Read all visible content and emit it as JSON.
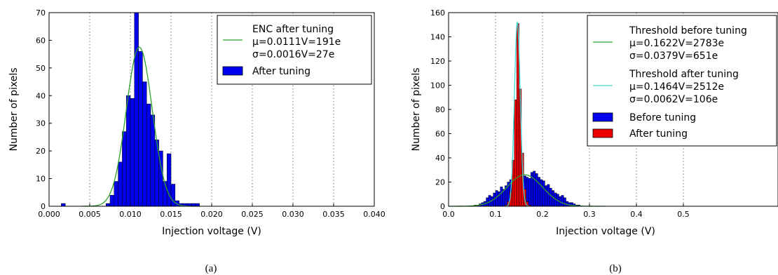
{
  "chart_data": [
    {
      "type": "bar",
      "caption": "(a)",
      "xlabel": "Injection voltage (V)",
      "ylabel": "Number of pixels",
      "xlim": [
        0.0,
        0.04
      ],
      "ylim": [
        0,
        70
      ],
      "xticks": [
        "0.000",
        "0.005",
        "0.010",
        "0.015",
        "0.020",
        "0.025",
        "0.030",
        "0.035",
        "0.040"
      ],
      "yticks": [
        "0",
        "10",
        "20",
        "30",
        "40",
        "50",
        "60",
        "70"
      ],
      "grid": "vertical dotted",
      "legend_position": "top-right",
      "bar_color": "#0000ee",
      "line_color": "#2ca02c",
      "bin_width": 0.0005,
      "series": [
        {
          "name": "After tuning",
          "bins": [
            [
              0.0015,
              1
            ],
            [
              0.007,
              1
            ],
            [
              0.0075,
              4
            ],
            [
              0.008,
              9
            ],
            [
              0.0085,
              16
            ],
            [
              0.009,
              27
            ],
            [
              0.0095,
              40
            ],
            [
              0.01,
              39
            ],
            [
              0.0105,
              70
            ],
            [
              0.011,
              56
            ],
            [
              0.0115,
              45
            ],
            [
              0.012,
              37
            ],
            [
              0.0125,
              33
            ],
            [
              0.013,
              24
            ],
            [
              0.0135,
              20
            ],
            [
              0.014,
              9
            ],
            [
              0.0145,
              19
            ],
            [
              0.015,
              8
            ],
            [
              0.0155,
              2
            ],
            [
              0.016,
              1
            ],
            [
              0.0165,
              1
            ],
            [
              0.017,
              1
            ],
            [
              0.0175,
              1
            ],
            [
              0.018,
              1
            ]
          ]
        },
        {
          "name": "ENC after tuning",
          "fit": {
            "mu": 0.0111,
            "sigma": 0.0016,
            "peak": 57.5
          }
        }
      ],
      "legend": {
        "fit_title": "ENC after tuning",
        "fit_mu": "μ=0.0111V=191e",
        "fit_sigma": "σ=0.0016V=27e",
        "bar_label": "After tuning"
      }
    },
    {
      "type": "bar",
      "caption": "(b)",
      "xlabel": "Injection voltage (V)",
      "ylabel": "Number of pixels",
      "xlim": [
        0.0,
        0.6
      ],
      "ylim": [
        0,
        160
      ],
      "xticks": [
        "0.0",
        "0.1",
        "0.2",
        "0.3",
        "0.4",
        "0.5"
      ],
      "yticks": [
        "0",
        "20",
        "40",
        "60",
        "80",
        "100",
        "120",
        "140",
        "160"
      ],
      "grid": "vertical dotted",
      "legend_position": "top-right",
      "before_color": "#0000ee",
      "after_color": "#ee0000",
      "fit_before_color": "#2ca02c",
      "fit_after_color": "#3fd7d7",
      "bin_width": 0.005,
      "series": [
        {
          "name": "Before tuning",
          "bins": [
            [
              0.055,
              1
            ],
            [
              0.06,
              1
            ],
            [
              0.065,
              2
            ],
            [
              0.07,
              3
            ],
            [
              0.075,
              4
            ],
            [
              0.08,
              7
            ],
            [
              0.085,
              9
            ],
            [
              0.09,
              8
            ],
            [
              0.095,
              11
            ],
            [
              0.1,
              13
            ],
            [
              0.105,
              12
            ],
            [
              0.11,
              16
            ],
            [
              0.115,
              14
            ],
            [
              0.12,
              17
            ],
            [
              0.125,
              20
            ],
            [
              0.13,
              22
            ],
            [
              0.135,
              21
            ],
            [
              0.14,
              24
            ],
            [
              0.145,
              19
            ],
            [
              0.15,
              22
            ],
            [
              0.155,
              26
            ],
            [
              0.16,
              25
            ],
            [
              0.165,
              24
            ],
            [
              0.17,
              23
            ],
            [
              0.175,
              28
            ],
            [
              0.18,
              29
            ],
            [
              0.185,
              27
            ],
            [
              0.19,
              24
            ],
            [
              0.195,
              22
            ],
            [
              0.2,
              21
            ],
            [
              0.205,
              17
            ],
            [
              0.21,
              18
            ],
            [
              0.215,
              15
            ],
            [
              0.22,
              13
            ],
            [
              0.225,
              11
            ],
            [
              0.23,
              10
            ],
            [
              0.235,
              8
            ],
            [
              0.24,
              9
            ],
            [
              0.245,
              7
            ],
            [
              0.25,
              4
            ],
            [
              0.255,
              3
            ],
            [
              0.26,
              3
            ],
            [
              0.265,
              2
            ],
            [
              0.27,
              1
            ],
            [
              0.275,
              1
            ]
          ]
        },
        {
          "name": "After tuning",
          "bins": [
            [
              0.12,
              1
            ],
            [
              0.125,
              4
            ],
            [
              0.13,
              12
            ],
            [
              0.135,
              38
            ],
            [
              0.14,
              88
            ],
            [
              0.145,
              151
            ],
            [
              0.15,
              97
            ],
            [
              0.155,
              44
            ],
            [
              0.16,
              14
            ],
            [
              0.165,
              4
            ],
            [
              0.17,
              1
            ]
          ]
        },
        {
          "name": "Threshold before tuning",
          "fit": {
            "mu": 0.1622,
            "sigma": 0.0379,
            "peak": 26
          }
        },
        {
          "name": "Threshold after tuning",
          "fit": {
            "mu": 0.1464,
            "sigma": 0.0062,
            "peak": 152
          }
        }
      ],
      "legend": {
        "fit_before_title": "Threshold before tuning",
        "fit_before_mu": "μ=0.1622V=2783e",
        "fit_before_sigma": "σ=0.0379V=651e",
        "fit_after_title": "Threshold after tuning",
        "fit_after_mu": "μ=0.1464V=2512e",
        "fit_after_sigma": "σ=0.0062V=106e",
        "before_label": "Before tuning",
        "after_label": "After tuning"
      }
    }
  ]
}
